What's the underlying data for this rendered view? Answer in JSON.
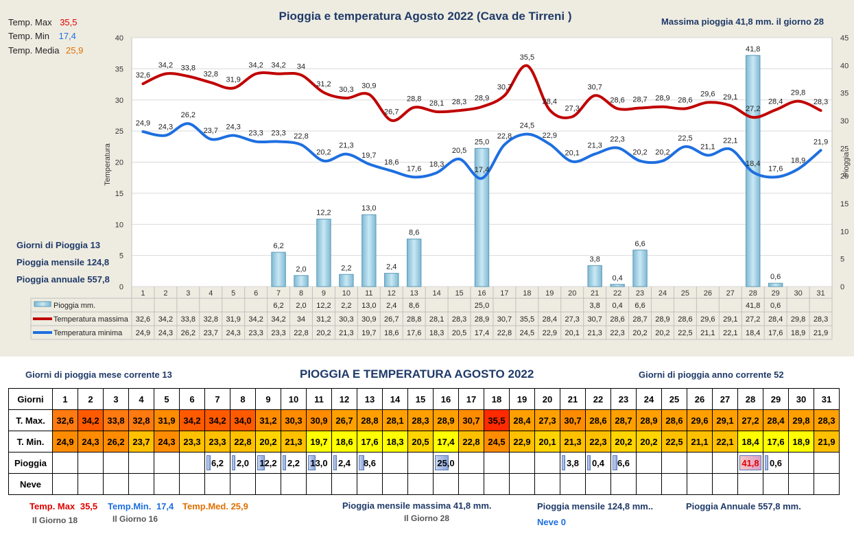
{
  "chart_data": {
    "type": "line",
    "title": "Pioggia e temperatura Agosto 2022 (Cava de Tirreni )",
    "ylabel": "Temperatura",
    "y2label": "Pioggia",
    "ylim": [
      0,
      40
    ],
    "y2lim": [
      0,
      45
    ],
    "yticks": [
      "0",
      "5",
      "10",
      "15",
      "20",
      "25",
      "30",
      "35",
      "40"
    ],
    "y2ticks": [
      "0",
      "5",
      "10",
      "15",
      "20",
      "25",
      "30",
      "35",
      "40",
      "45"
    ],
    "days": [
      "1",
      "2",
      "3",
      "4",
      "5",
      "6",
      "7",
      "8",
      "9",
      "10",
      "11",
      "12",
      "13",
      "14",
      "15",
      "16",
      "17",
      "18",
      "19",
      "20",
      "21",
      "22",
      "23",
      "24",
      "25",
      "26",
      "27",
      "28",
      "29",
      "30",
      "31"
    ],
    "series": [
      {
        "name": "Pioggia mm.",
        "type": "bar",
        "axis": "right",
        "color": "#a6d6ea",
        "values": [
          null,
          null,
          null,
          null,
          null,
          null,
          6.2,
          2.0,
          12.2,
          2.2,
          13.0,
          2.4,
          8.6,
          null,
          null,
          25.0,
          null,
          null,
          null,
          null,
          3.8,
          0.4,
          6.6,
          null,
          null,
          null,
          null,
          41.8,
          0.6,
          null,
          null
        ],
        "labels": [
          "",
          "",
          "",
          "",
          "",
          "",
          "6,2",
          "2,0",
          "12,2",
          "2,2",
          "13,0",
          "2,4",
          "8,6",
          "",
          "",
          "25,0",
          "",
          "",
          "",
          "",
          "3,8",
          "0,4",
          "6,6",
          "",
          "",
          "",
          "",
          "41,8",
          "0,6",
          "",
          ""
        ]
      },
      {
        "name": "Temperatura massima",
        "type": "line",
        "axis": "left",
        "color": "#c00000",
        "values": [
          32.6,
          34.2,
          33.8,
          32.8,
          31.9,
          34.2,
          34.2,
          34.0,
          31.2,
          30.3,
          30.9,
          26.7,
          28.8,
          28.1,
          28.3,
          28.9,
          30.7,
          35.5,
          28.4,
          27.3,
          30.7,
          28.6,
          28.7,
          28.9,
          28.6,
          29.6,
          29.1,
          27.2,
          28.4,
          29.8,
          28.3
        ],
        "labels": [
          "32,6",
          "34,2",
          "33,8",
          "32,8",
          "31,9",
          "34,2",
          "34,2",
          "34",
          "31,2",
          "30,3",
          "30,9",
          "26,7",
          "28,8",
          "28,1",
          "28,3",
          "28,9",
          "30,7",
          "35,5",
          "28,4",
          "27,3",
          "30,7",
          "28,6",
          "28,7",
          "28,9",
          "28,6",
          "29,6",
          "29,1",
          "27,2",
          "28,4",
          "29,8",
          "28,3"
        ]
      },
      {
        "name": "Temperatura minima",
        "type": "line",
        "axis": "left",
        "color": "#1e6fe0",
        "values": [
          24.9,
          24.3,
          26.2,
          23.7,
          24.3,
          23.3,
          23.3,
          22.8,
          20.2,
          21.3,
          19.7,
          18.6,
          17.6,
          18.3,
          20.5,
          17.4,
          22.8,
          24.5,
          22.9,
          20.1,
          21.3,
          22.3,
          20.2,
          20.2,
          22.5,
          21.1,
          22.1,
          18.4,
          17.6,
          18.9,
          21.9
        ],
        "labels": [
          "24,9",
          "24,3",
          "26,2",
          "23,7",
          "24,3",
          "23,3",
          "23,3",
          "22,8",
          "20,2",
          "21,3",
          "19,7",
          "18,6",
          "17,6",
          "18,3",
          "20,5",
          "17,4",
          "22,8",
          "24,5",
          "22,9",
          "20,1",
          "21,3",
          "22,3",
          "20,2",
          "20,2",
          "22,5",
          "21,1",
          "22,1",
          "18,4",
          "17,6",
          "18,9",
          "21,9"
        ]
      }
    ]
  },
  "chart_stats": {
    "max_label": "Temp. Max",
    "max_value": "35,5",
    "min_label": "Temp. Min",
    "min_value": "17,4",
    "avg_label": "Temp. Media",
    "avg_value": "25,9",
    "max_rain": "Massima pioggia  41,8 mm. il giorno   28",
    "rain_days": "Giorni di Pioggia  13",
    "rain_month": "Pioggia mensile   124,8",
    "rain_year": "Pioggia annuale   557,8"
  },
  "table": {
    "title": "PIOGGIA E TEMPERATURA AGOSTO 2022",
    "rain_days_month": "Giorni di pioggia mese corrente    13",
    "rain_days_year": "Giorni di pioggia anno corrente   52",
    "row_labels": [
      "Giorni",
      "T. Max.",
      "T. Min.",
      "Pioggia",
      "Neve"
    ],
    "tmax": [
      "32,6",
      "34,2",
      "33,8",
      "32,8",
      "31,9",
      "34,2",
      "34,2",
      "34,0",
      "31,2",
      "30,3",
      "30,9",
      "26,7",
      "28,8",
      "28,1",
      "28,3",
      "28,9",
      "30,7",
      "35,5",
      "28,4",
      "27,3",
      "30,7",
      "28,6",
      "28,7",
      "28,9",
      "28,6",
      "29,6",
      "29,1",
      "27,2",
      "28,4",
      "29,8",
      "28,3"
    ],
    "tmin": [
      "24,9",
      "24,3",
      "26,2",
      "23,7",
      "24,3",
      "23,3",
      "23,3",
      "22,8",
      "20,2",
      "21,3",
      "19,7",
      "18,6",
      "17,6",
      "18,3",
      "20,5",
      "17,4",
      "22,8",
      "24,5",
      "22,9",
      "20,1",
      "21,3",
      "22,3",
      "20,2",
      "20,2",
      "22,5",
      "21,1",
      "22,1",
      "18,4",
      "17,6",
      "18,9",
      "21,9"
    ],
    "rain": [
      "",
      "",
      "",
      "",
      "",
      "",
      "6,2",
      "2,0",
      "12,2",
      "2,2",
      "13,0",
      "2,4",
      "8,6",
      "",
      "",
      "25,0",
      "",
      "",
      "",
      "",
      "3,8",
      "0,4",
      "6,6",
      "",
      "",
      "",
      "",
      "41,8",
      "0,6",
      "",
      ""
    ]
  },
  "footer": {
    "tmax_label": "Temp. Max",
    "tmax_value": "35,5",
    "tmax_day": "Il Giorno  18",
    "tmin_label": "Temp.Min.",
    "tmin_value": "17,4",
    "tmin_day": "Il Giorno 16",
    "tmed_label": "Temp.Med.",
    "tmed_value": "25,9",
    "rain_max": "Pioggia mensile massima  41,8   mm.",
    "rain_max_day": "Il Giorno 28",
    "rain_month": "Pioggia mensile  124,8 mm..",
    "rain_year": "Pioggia Annuale  557,8    mm.",
    "snow": "Neve 0"
  }
}
